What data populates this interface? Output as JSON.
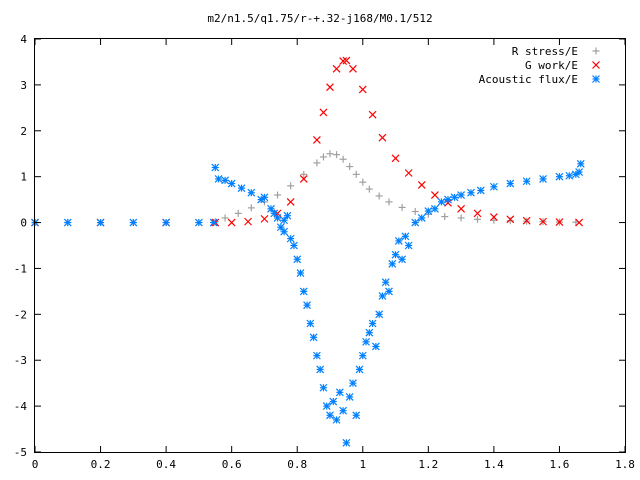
{
  "chart_data": {
    "type": "scatter",
    "title": "m2/n1.5/q1.75/r-+.32-j168/M0.1/512",
    "xlabel": "",
    "ylabel": "",
    "xlim": [
      0,
      1.8
    ],
    "ylim": [
      -5,
      4
    ],
    "xticks": [
      "0",
      "0.2",
      "0.4",
      "0.6",
      "0.8",
      "1",
      "1.2",
      "1.4",
      "1.6",
      "1.8"
    ],
    "yticks": [
      "-5",
      "-4",
      "-3",
      "-2",
      "-1",
      "0",
      "1",
      "2",
      "3",
      "4"
    ],
    "grid": false,
    "legend_position": "top-right",
    "series": [
      {
        "name": "R stress/E",
        "marker": "+",
        "color": "#a0a0a0",
        "x": [
          0.0,
          0.1,
          0.2,
          0.3,
          0.4,
          0.5,
          0.55,
          0.58,
          0.62,
          0.66,
          0.7,
          0.74,
          0.78,
          0.82,
          0.86,
          0.88,
          0.9,
          0.92,
          0.94,
          0.96,
          0.98,
          1.0,
          1.02,
          1.05,
          1.08,
          1.12,
          1.16,
          1.2,
          1.25,
          1.3,
          1.35,
          1.4,
          1.45,
          1.5,
          1.55,
          1.6,
          1.65
        ],
        "y": [
          0.0,
          0.0,
          0.0,
          0.0,
          0.0,
          0.0,
          0.02,
          0.1,
          0.2,
          0.32,
          0.45,
          0.6,
          0.8,
          1.05,
          1.3,
          1.43,
          1.5,
          1.48,
          1.38,
          1.22,
          1.05,
          0.88,
          0.73,
          0.58,
          0.45,
          0.33,
          0.24,
          0.18,
          0.13,
          0.1,
          0.07,
          0.05,
          0.04,
          0.03,
          0.02,
          0.01,
          0.01
        ]
      },
      {
        "name": "G work/E",
        "marker": "x",
        "color": "#ff0000",
        "x": [
          0.0,
          0.2,
          0.4,
          0.55,
          0.6,
          0.65,
          0.7,
          0.74,
          0.78,
          0.82,
          0.86,
          0.88,
          0.9,
          0.92,
          0.94,
          0.95,
          0.97,
          1.0,
          1.03,
          1.06,
          1.1,
          1.14,
          1.18,
          1.22,
          1.26,
          1.3,
          1.35,
          1.4,
          1.45,
          1.5,
          1.55,
          1.6,
          1.66
        ],
        "y": [
          0.0,
          0.0,
          0.0,
          0.0,
          0.0,
          0.02,
          0.08,
          0.2,
          0.45,
          0.95,
          1.8,
          2.4,
          2.95,
          3.35,
          3.52,
          3.53,
          3.35,
          2.9,
          2.35,
          1.85,
          1.4,
          1.08,
          0.82,
          0.6,
          0.43,
          0.3,
          0.2,
          0.12,
          0.07,
          0.04,
          0.02,
          0.01,
          0.0
        ]
      },
      {
        "name": "Acoustic flux/E",
        "marker": "*",
        "color": "#0080ff",
        "x": [
          0.0,
          0.1,
          0.2,
          0.3,
          0.4,
          0.5,
          0.545,
          0.55,
          0.56,
          0.58,
          0.6,
          0.63,
          0.66,
          0.69,
          0.7,
          0.72,
          0.73,
          0.74,
          0.75,
          0.76,
          0.76,
          0.77,
          0.78,
          0.79,
          0.8,
          0.81,
          0.82,
          0.83,
          0.84,
          0.85,
          0.86,
          0.87,
          0.88,
          0.89,
          0.9,
          0.91,
          0.92,
          0.93,
          0.94,
          0.95,
          0.96,
          0.97,
          0.98,
          0.99,
          1.0,
          1.01,
          1.02,
          1.03,
          1.04,
          1.05,
          1.06,
          1.07,
          1.08,
          1.09,
          1.1,
          1.11,
          1.12,
          1.13,
          1.14,
          1.16,
          1.18,
          1.2,
          1.22,
          1.24,
          1.26,
          1.28,
          1.3,
          1.33,
          1.36,
          1.4,
          1.45,
          1.5,
          1.55,
          1.6,
          1.63,
          1.65,
          1.66,
          1.665
        ],
        "y": [
          0.0,
          0.0,
          0.0,
          0.0,
          0.0,
          0.0,
          0.0,
          1.2,
          0.95,
          0.92,
          0.85,
          0.75,
          0.65,
          0.5,
          0.55,
          0.3,
          0.2,
          0.1,
          -0.1,
          -0.2,
          0.05,
          0.15,
          -0.35,
          -0.5,
          -0.8,
          -1.1,
          -1.5,
          -1.8,
          -2.2,
          -2.5,
          -2.9,
          -3.2,
          -3.6,
          -4.0,
          -4.2,
          -3.9,
          -4.3,
          -3.7,
          -4.1,
          -4.8,
          -3.8,
          -3.5,
          -4.2,
          -3.2,
          -2.9,
          -2.6,
          -2.4,
          -2.2,
          -2.7,
          -2.0,
          -1.6,
          -1.3,
          -1.5,
          -0.9,
          -0.7,
          -0.4,
          -0.8,
          -0.3,
          -0.5,
          0.0,
          0.1,
          0.25,
          0.3,
          0.45,
          0.5,
          0.55,
          0.6,
          0.65,
          0.7,
          0.78,
          0.85,
          0.9,
          0.95,
          1.0,
          1.02,
          1.05,
          1.1,
          1.28
        ]
      }
    ]
  }
}
